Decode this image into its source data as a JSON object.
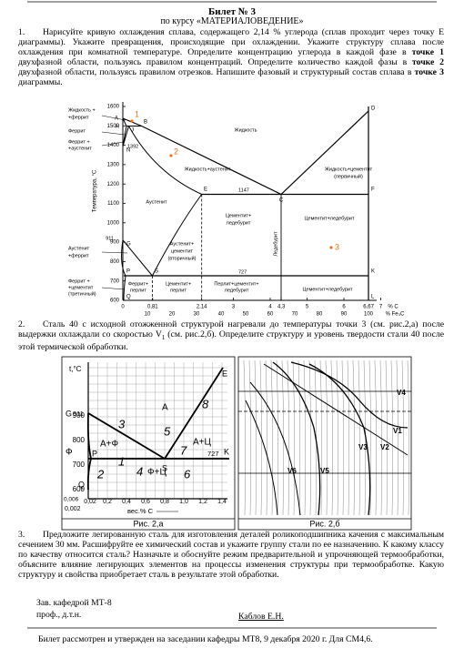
{
  "header": {
    "title": "Билет № 3",
    "subtitle": "по курсу «МАТЕРИАЛОВЕДЕНИЕ»"
  },
  "task1": {
    "number": "1.",
    "runs": [
      {
        "text": "Нарисуйте кривую охлаждения сплава, содержащего 2,14 % углерода (сплав проходит через точку Е диаграммы). Укажите превращения, происходящие при охлаждении. Укажите структуру сплава после охлаждения при комнатной температуре. Определите концентрацию углерода в каждой фазе в "
      },
      {
        "text": "точке 1",
        "bold": true
      },
      {
        "text": " двухфазной области, пользуясь правилом концентраций. Определите количество каждой фазы в "
      },
      {
        "text": "точке 2",
        "bold": true
      },
      {
        "text": " двухфазной области, пользуясь правилом отрезков. Напишите фазовый и структурный состав сплава в "
      },
      {
        "text": "точке 3",
        "bold": true
      },
      {
        "text": " диаграммы."
      }
    ]
  },
  "figure1": {
    "y_axis_title": "Температура, °С",
    "y_ticks": [
      "1600",
      "1500",
      "1400",
      "1300",
      "1200",
      "1100",
      "1000",
      "900",
      "800",
      "700",
      "600"
    ],
    "x_ticks": [
      "0",
      "0,81",
      "2,14",
      "3",
      "4",
      "4,3",
      "5",
      "6",
      "6,67",
      "7"
    ],
    "x_unit": "% С",
    "x2_ticks": [
      "10",
      "20",
      "30",
      "40",
      "50",
      "60",
      "70",
      "80",
      "90",
      "100"
    ],
    "x2_unit": "% Fe₃C",
    "points": [
      "A",
      "H",
      "J",
      "B",
      "N",
      "D",
      "C",
      "E",
      "F",
      "G",
      "S",
      "P",
      "K",
      "Q",
      "L"
    ],
    "temperatures": [
      "1392",
      "911",
      "1147",
      "727"
    ],
    "regions": [
      "Жидкость +",
      "+феррит",
      "Феррит",
      "Феррит +",
      "+аустенит",
      "Жидкость",
      "Жидкость+аустенит",
      "Жидкость+цементит",
      "(первичный)",
      "Аустенит",
      "Аустенит",
      "+феррит",
      "Феррит +",
      "+цементит",
      "(третичный)",
      "Аустенит+",
      "цементит",
      "(вторичный)",
      "Цементит+",
      "ледебурит",
      "Цементит+ледебурит",
      "Ледебурит",
      "Феррит+",
      "перлит",
      "Цементит+",
      "перлит",
      "Перлит+цементит+",
      "ледебурит",
      "Цементит+ледебурит"
    ],
    "markers": [
      "1",
      "2",
      "3"
    ]
  },
  "task2": {
    "number": "2.",
    "runs": [
      {
        "text": "Сталь 40 с исходной отожженной структурой нагревали до температуры точки 3 (см. рис.2,а) после выдержки охлаждали со скоростью V"
      },
      {
        "text": "1",
        "sub": true
      },
      {
        "text": " (см. рис.2,б). Определите структуру и уровень твердости стали 40 после этой термической обработки."
      }
    ]
  },
  "figure2a": {
    "y_axis_title": "t,°C",
    "y_ticks": [
      "900",
      "800",
      "700",
      "600"
    ],
    "x_ticks": [
      "0,002",
      "0,02",
      "0,2",
      "0,4",
      "0,6",
      "0,8",
      "1,0",
      "1,2",
      "1,4"
    ],
    "x0": "0,006",
    "x_axis_title": "вес.% С",
    "points": [
      "G",
      "P",
      "S",
      "Q",
      "E",
      "K"
    ],
    "temperatures": [
      "911",
      "727"
    ],
    "phases": [
      "A",
      "A+Ф",
      "Ф",
      "A+Ц",
      "Ф+Ц"
    ],
    "markers": [
      "1",
      "2",
      "3",
      "4",
      "5",
      "6",
      "7",
      "8"
    ],
    "caption": "Рис. 2,а"
  },
  "figure2b": {
    "labels": [
      "V1",
      "V2",
      "V3",
      "V4",
      "V5",
      "V6"
    ],
    "caption": "Рис. 2,б"
  },
  "task3": {
    "number": "3.",
    "runs": [
      {
        "text": "Предложите легированную сталь для изготовления деталей роликоподшипника качения с максимальным сечением 30 мм. Расшифруйте ее химический состав и укажите группу стали по ее назначению. К какому классу по качеству относится сталь? Назначьте и обоснуйте режим предварительной и упрочняющей термообработки, объясните влияние легирующих элементов на процессы изменения структуры при термообработке. Какую структуру и свойства приобретает сталь в результате этой обработки."
      }
    ]
  },
  "footer": {
    "head": "Зав. кафедрой МТ-8",
    "rank": "проф., д.т.н.",
    "name": "Каблов Е.Н.",
    "note": "Билет рассмотрен и утвержден на заседании кафедры МТ8, 9 декабря 2020 г. Для СМ4,6."
  }
}
